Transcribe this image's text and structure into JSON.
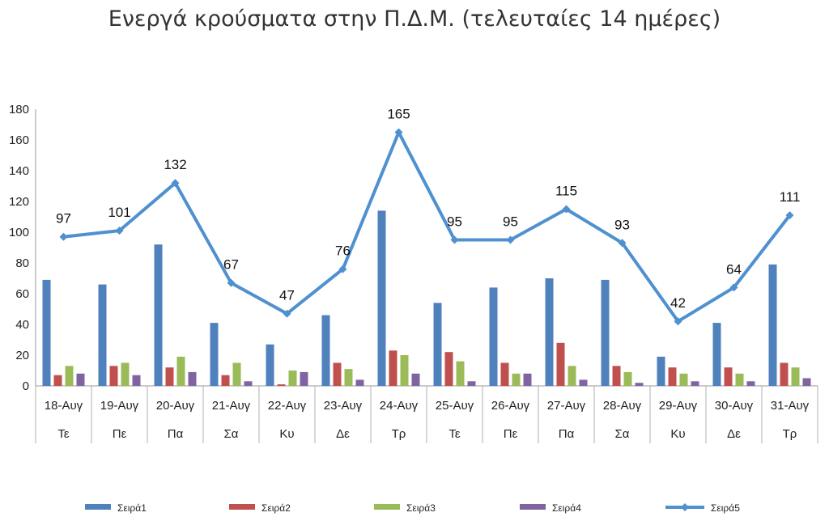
{
  "chart_data": {
    "type": "bar",
    "title": "Ενεργά κρούσματα στην Π.Δ.Μ. (τελευταίες 14 ημέρες)",
    "xlabel": "",
    "ylabel": "",
    "ylim": [
      0,
      180
    ],
    "yticks": [
      0,
      20,
      40,
      60,
      80,
      100,
      120,
      140,
      160,
      180
    ],
    "grid": false,
    "legend_position": "bottom",
    "categories": [
      "18-Αυγ",
      "19-Αυγ",
      "20-Αυγ",
      "21-Αυγ",
      "22-Αυγ",
      "23-Αυγ",
      "24-Αυγ",
      "25-Αυγ",
      "26-Αυγ",
      "27-Αυγ",
      "28-Αυγ",
      "29-Αυγ",
      "30-Αυγ",
      "31-Αυγ"
    ],
    "days": [
      "Τε",
      "Πε",
      "Πα",
      "Σα",
      "Κυ",
      "Δε",
      "Τρ",
      "Τε",
      "Πε",
      "Πα",
      "Σα",
      "Κυ",
      "Δε",
      "Τρ"
    ],
    "series": [
      {
        "name": "Σειρά1",
        "type": "bar",
        "color": "#4f81bd",
        "values": [
          69,
          66,
          92,
          41,
          27,
          46,
          114,
          54,
          64,
          70,
          69,
          19,
          41,
          79
        ]
      },
      {
        "name": "Σειρά2",
        "type": "bar",
        "color": "#c0504d",
        "values": [
          7,
          13,
          12,
          7,
          1,
          15,
          23,
          22,
          15,
          28,
          13,
          12,
          12,
          15
        ]
      },
      {
        "name": "Σειρά3",
        "type": "bar",
        "color": "#9bbb59",
        "values": [
          13,
          15,
          19,
          15,
          10,
          11,
          20,
          16,
          8,
          13,
          9,
          8,
          8,
          12
        ]
      },
      {
        "name": "Σειρά4",
        "type": "bar",
        "color": "#8064a2",
        "values": [
          8,
          7,
          9,
          3,
          9,
          4,
          8,
          3,
          8,
          4,
          2,
          3,
          3,
          5
        ]
      },
      {
        "name": "Σειρά5",
        "type": "line",
        "color": "#4f90cf",
        "values": [
          97,
          101,
          132,
          67,
          47,
          76,
          165,
          95,
          95,
          115,
          93,
          42,
          64,
          111
        ],
        "labels": [
          "97",
          "101",
          "132",
          "67",
          "47",
          "76",
          "165",
          "95",
          "95",
          "115",
          "93",
          "42",
          "64",
          "111"
        ]
      }
    ]
  }
}
